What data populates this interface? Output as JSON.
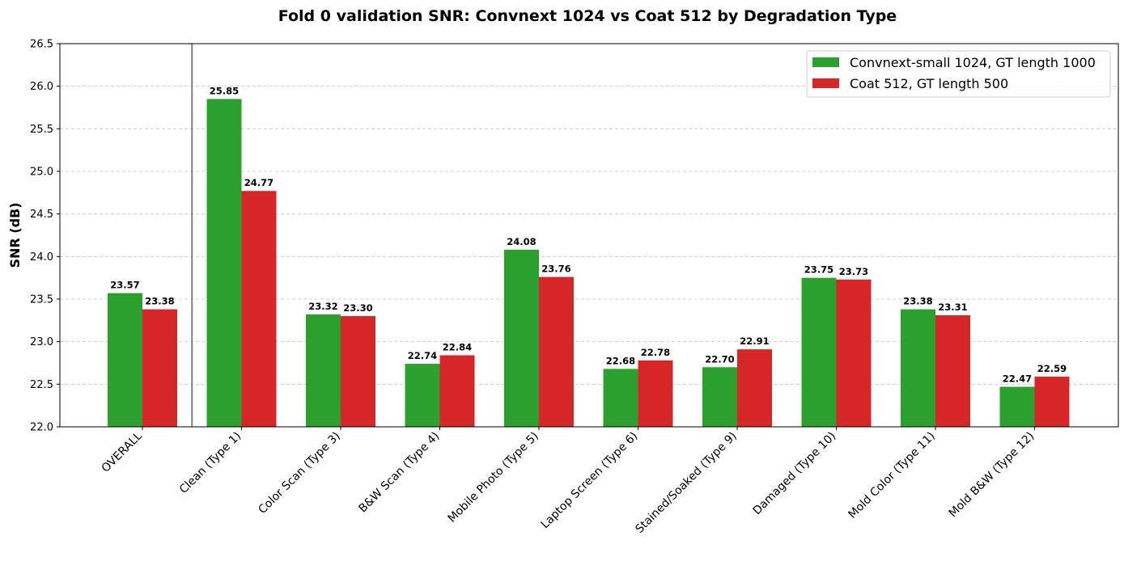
{
  "chart_data": {
    "type": "bar",
    "title": "Fold 0 validation SNR: Convnext 1024 vs Coat 512 by Degradation Type",
    "xlabel": "",
    "ylabel": "SNR (dB)",
    "ylim": [
      22.0,
      26.5
    ],
    "yticks": [
      "22.0",
      "22.5",
      "23.0",
      "23.5",
      "24.0",
      "24.5",
      "25.0",
      "25.5",
      "26.0",
      "26.5"
    ],
    "grid": "horizontal dashed",
    "legend_position": "top-right",
    "separator_after_category": "OVERALL",
    "categories": [
      "OVERALL",
      "Clean (Type 1)",
      "Color Scan (Type 3)",
      "B&W Scan (Type 4)",
      "Mobile Photo (Type 5)",
      "Laptop Screen (Type 6)",
      "Stained/Soaked (Type 9)",
      "Damaged (Type 10)",
      "Mold Color (Type 11)",
      "Mold B&W (Type 12)"
    ],
    "series": [
      {
        "name": "Convnext-small 1024, GT length 1000",
        "color": "#2ca02c",
        "values": [
          23.57,
          25.85,
          23.32,
          22.74,
          24.08,
          22.68,
          22.7,
          23.75,
          23.38,
          22.47
        ],
        "labels": [
          "23.57",
          "25.85",
          "23.32",
          "22.74",
          "24.08",
          "22.68",
          "22.70",
          "23.75",
          "23.38",
          "22.47"
        ]
      },
      {
        "name": "Coat 512, GT length 500",
        "color": "#d62728",
        "values": [
          23.38,
          24.77,
          23.3,
          22.84,
          23.76,
          22.78,
          22.91,
          23.73,
          23.31,
          22.59
        ],
        "labels": [
          "23.38",
          "24.77",
          "23.30",
          "22.84",
          "23.76",
          "22.78",
          "22.91",
          "23.73",
          "23.31",
          "22.59"
        ]
      }
    ]
  }
}
